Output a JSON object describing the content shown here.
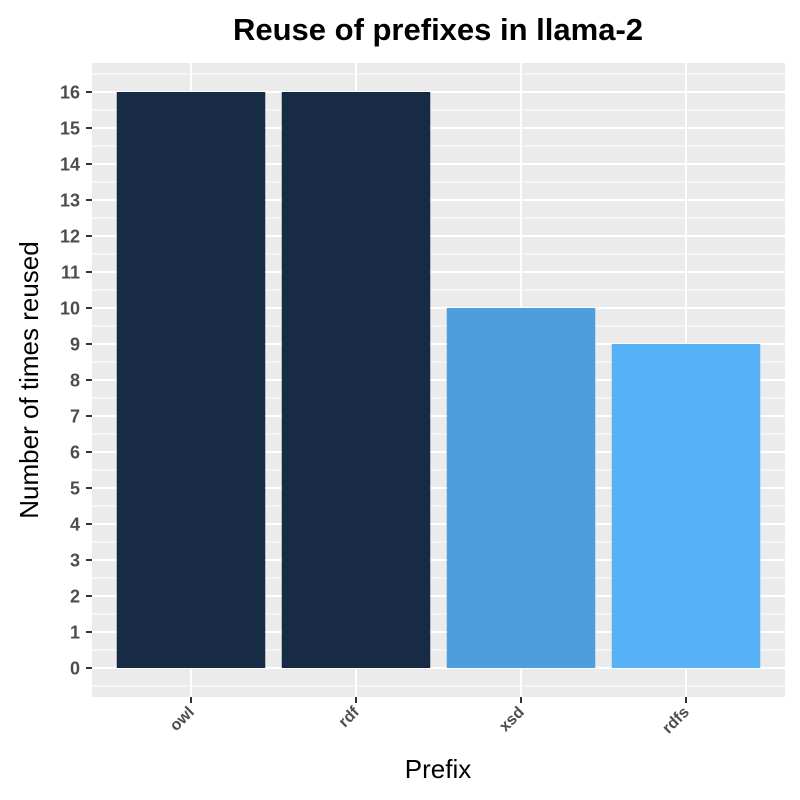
{
  "chart_data": {
    "type": "bar",
    "title": "Reuse of prefixes in llama-2",
    "xlabel": "Prefix",
    "ylabel": "Number of times reused",
    "categories": [
      "owl",
      "rdf",
      "xsd",
      "rdfs"
    ],
    "values": [
      16,
      16,
      10,
      9
    ],
    "bar_colors": [
      "#172B44",
      "#172B44",
      "#4E9DDC",
      "#56B1F7"
    ],
    "ylim": [
      0,
      16
    ],
    "yticks": [
      0,
      1,
      2,
      3,
      4,
      5,
      6,
      7,
      8,
      9,
      10,
      11,
      12,
      13,
      14,
      15,
      16
    ],
    "grid": true,
    "legend": "none",
    "panel_background": "#EBEBEB",
    "grid_color": "#FFFFFF"
  }
}
